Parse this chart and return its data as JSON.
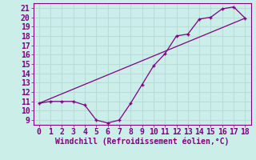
{
  "xlabel": "Windchill (Refroidissement éolien,°C)",
  "bg_color": "#cceee8",
  "line_color": "#800080",
  "grid_color": "#b8ddd8",
  "xlim": [
    -0.5,
    18.5
  ],
  "ylim": [
    8.5,
    21.5
  ],
  "xticks": [
    0,
    1,
    2,
    3,
    4,
    5,
    6,
    7,
    8,
    9,
    10,
    11,
    12,
    13,
    14,
    15,
    16,
    17,
    18
  ],
  "yticks": [
    9,
    10,
    11,
    12,
    13,
    14,
    15,
    16,
    17,
    18,
    19,
    20,
    21
  ],
  "curve_x": [
    0,
    1,
    2,
    3,
    4,
    5,
    6,
    7,
    8,
    9,
    10,
    11,
    12,
    13,
    14,
    15,
    16,
    17,
    18
  ],
  "curve_y": [
    10.8,
    11.0,
    11.0,
    11.0,
    10.6,
    9.0,
    8.7,
    9.0,
    10.8,
    12.8,
    14.8,
    16.1,
    18.0,
    18.2,
    19.8,
    20.0,
    20.9,
    21.1,
    19.9
  ],
  "line_x": [
    0,
    18
  ],
  "line_y": [
    10.8,
    19.9
  ],
  "tick_fontsize": 7,
  "xlabel_fontsize": 7
}
